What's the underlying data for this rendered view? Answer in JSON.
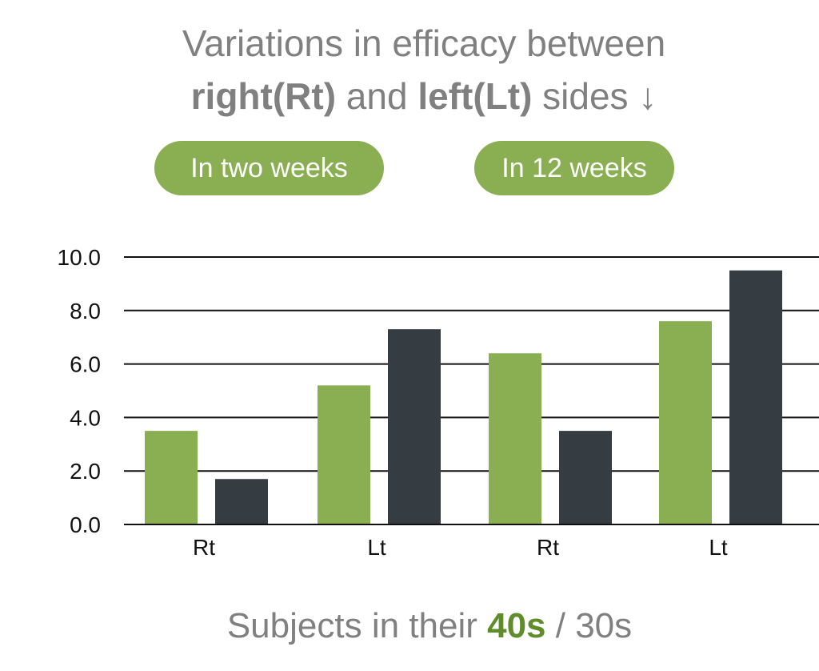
{
  "title": {
    "line1": "Variations in efficacy between",
    "right_bold": "right(Rt)",
    "and_text": " and ",
    "left_bold": "left(Lt)",
    "sides_text": " sides ↓"
  },
  "legend": {
    "pill_1": "In two weeks",
    "pill_2": "In 12 weeks"
  },
  "footer": {
    "prefix": "Subjects in their ",
    "highlight": "40s",
    "suffix": " / 30s"
  },
  "colors": {
    "green": "#8aaf52",
    "dark": "#363d42",
    "grid": "#111111",
    "text": "#808080",
    "highlight": "#5f8d2b"
  },
  "chart_data": {
    "type": "bar",
    "categories": [
      "Rt",
      "Lt",
      "Rt",
      "Lt"
    ],
    "series": [
      {
        "name": "40s",
        "color": "#8aaf52",
        "values": [
          3.5,
          5.2,
          6.4,
          7.6
        ]
      },
      {
        "name": "30s",
        "color": "#363d42",
        "values": [
          1.7,
          7.3,
          3.5,
          9.5
        ]
      }
    ],
    "ylim": [
      0,
      10
    ],
    "yticks": [
      "0.0",
      "2.0",
      "4.0",
      "6.0",
      "8.0",
      "10.0"
    ],
    "grid": true
  }
}
